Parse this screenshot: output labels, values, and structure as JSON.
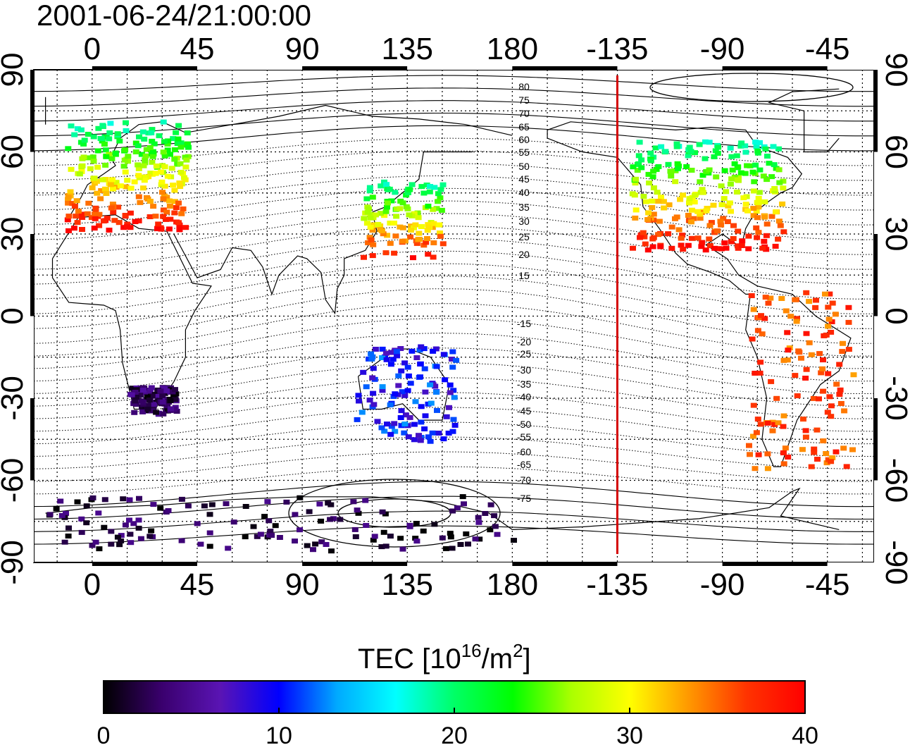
{
  "timestamp": "2001-06-24/21:00:00",
  "map": {
    "lon_ticks": [
      "0",
      "45",
      "90",
      "135",
      "180",
      "-135",
      "-90",
      "-45"
    ],
    "lat_ticks": [
      "90",
      "60",
      "30",
      "0",
      "-30",
      "-60",
      "-90"
    ],
    "contour_labels": [
      "80",
      "75",
      "70",
      "65",
      "60",
      "55",
      "50",
      "45",
      "40",
      "35",
      "30",
      "25",
      "20",
      "15",
      "-15",
      "-20",
      "-25",
      "-30",
      "-35",
      "-40",
      "-45",
      "-50",
      "-55",
      "-60",
      "-65",
      "-70",
      "-75"
    ],
    "terminator_longitude": -135,
    "terminator_color": "#d40000",
    "regions": [
      {
        "name": "europe",
        "lon": [
          -12,
          40
        ],
        "lat": [
          32,
          72
        ],
        "tec": 32
      },
      {
        "name": "east-asia",
        "lon": [
          115,
          150
        ],
        "lat": [
          22,
          50
        ],
        "tec": 31
      },
      {
        "name": "north-america",
        "lon": [
          -130,
          -65
        ],
        "lat": [
          25,
          65
        ],
        "tec": 30
      },
      {
        "name": "south-america",
        "lon": [
          -80,
          -35
        ],
        "lat": [
          -55,
          10
        ],
        "tec": 36
      },
      {
        "name": "southern-africa",
        "lon": [
          15,
          35
        ],
        "lat": [
          -35,
          -25
        ],
        "tec": 3
      },
      {
        "name": "australia",
        "lon": [
          112,
          155
        ],
        "lat": [
          -45,
          -10
        ],
        "tec": 10
      },
      {
        "name": "antarctica",
        "lon": [
          -20,
          180
        ],
        "lat": [
          -85,
          -65
        ],
        "tec": 2
      }
    ]
  },
  "colorbar": {
    "title": "TEC  [10",
    "title_sup": "16",
    "title_unit": "/m",
    "title_sup2": "2",
    "title_end": "]",
    "ticks": [
      "0",
      "10",
      "20",
      "30",
      "40"
    ],
    "stops": [
      "#000000",
      "#3a006e",
      "#5a14b4",
      "#0000ff",
      "#00aaff",
      "#00ffff",
      "#00ff66",
      "#00ff00",
      "#aaff00",
      "#ffff00",
      "#ff9900",
      "#ff3300",
      "#ff0000"
    ]
  }
}
